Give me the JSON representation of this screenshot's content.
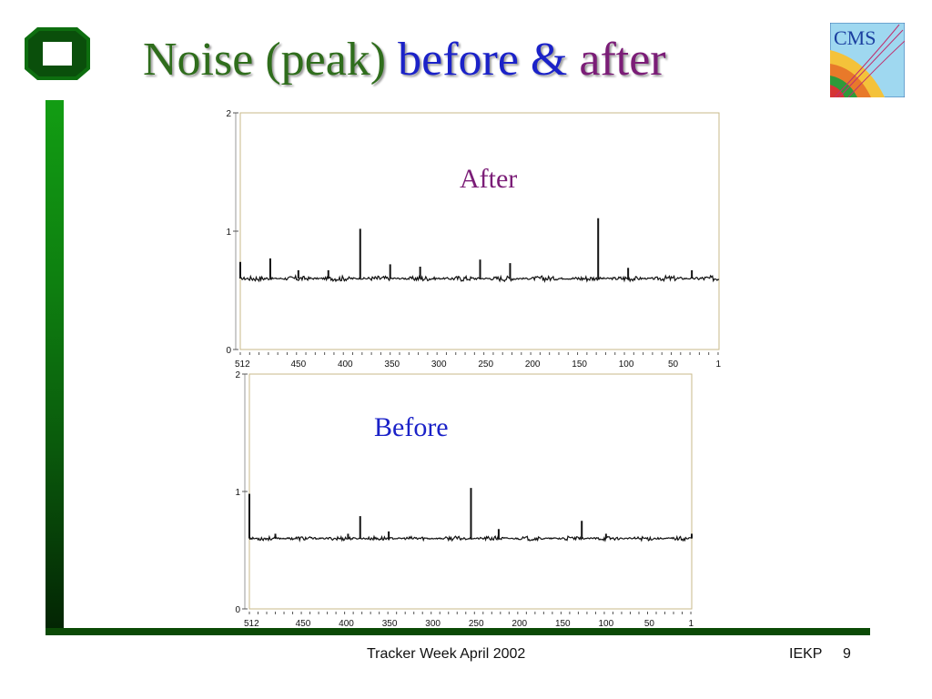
{
  "slide": {
    "title_part1": "Noise (peak)",
    "title_part2": "before",
    "title_part3": "&",
    "title_part4": "after",
    "logo_icon": "ka-university-logo-icon",
    "cms_logo_text": "CMS",
    "footer_center": "Tracker Week April 2002",
    "footer_right": "IEKP",
    "page_number": "9",
    "colors": {
      "title_green": "#2f6d1c",
      "title_blue": "#1b22c8",
      "title_purple": "#7b1d77",
      "bar_green": "#0e7f10"
    }
  },
  "chart_data": [
    {
      "type": "line",
      "label": "After",
      "label_color": "#7b1d77",
      "x_reversed": true,
      "xlim": [
        512,
        1
      ],
      "ylim": [
        0,
        2
      ],
      "xticks": [
        "512",
        "450",
        "400",
        "350",
        "300",
        "250",
        "200",
        "150",
        "100",
        "50",
        "1"
      ],
      "yticks": [
        "0",
        "1",
        "2"
      ],
      "baseline": 0.6,
      "noise_amplitude": 0.015,
      "peaks": [
        {
          "x": 512,
          "y": 0.74
        },
        {
          "x": 480,
          "y": 0.77
        },
        {
          "x": 450,
          "y": 0.67
        },
        {
          "x": 418,
          "y": 0.67
        },
        {
          "x": 384,
          "y": 1.02
        },
        {
          "x": 352,
          "y": 0.72
        },
        {
          "x": 320,
          "y": 0.7
        },
        {
          "x": 256,
          "y": 0.76
        },
        {
          "x": 224,
          "y": 0.73
        },
        {
          "x": 130,
          "y": 1.11
        },
        {
          "x": 98,
          "y": 0.69
        },
        {
          "x": 30,
          "y": 0.67
        }
      ]
    },
    {
      "type": "line",
      "label": "Before",
      "label_color": "#1b22c8",
      "x_reversed": true,
      "xlim": [
        512,
        1
      ],
      "ylim": [
        0,
        2
      ],
      "xticks": [
        "512",
        "450",
        "400",
        "350",
        "300",
        "250",
        "200",
        "150",
        "100",
        "50",
        "1"
      ],
      "yticks": [
        "0",
        "1",
        "2"
      ],
      "baseline": 0.6,
      "noise_amplitude": 0.012,
      "peaks": [
        {
          "x": 512,
          "y": 0.98
        },
        {
          "x": 482,
          "y": 0.64
        },
        {
          "x": 398,
          "y": 0.64
        },
        {
          "x": 384,
          "y": 0.79
        },
        {
          "x": 351,
          "y": 0.66
        },
        {
          "x": 256,
          "y": 1.03
        },
        {
          "x": 224,
          "y": 0.68
        },
        {
          "x": 128,
          "y": 0.75
        },
        {
          "x": 100,
          "y": 0.64
        },
        {
          "x": 1,
          "y": 0.64
        }
      ]
    }
  ]
}
